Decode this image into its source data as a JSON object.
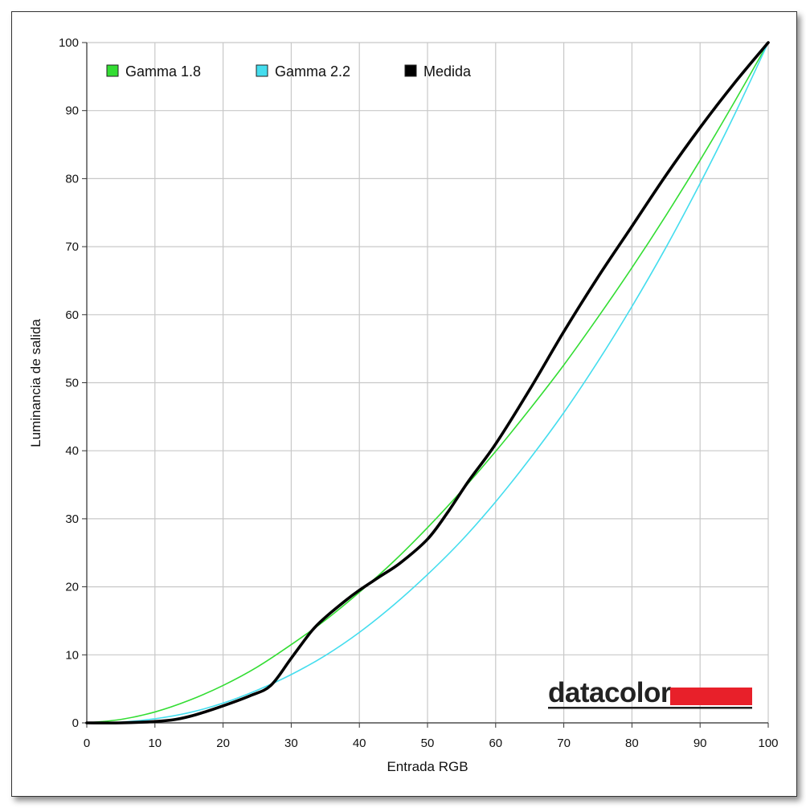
{
  "chart_data": {
    "type": "line",
    "xlabel": "Entrada RGB",
    "ylabel": "Luminancia de salida",
    "xlim": [
      0,
      100
    ],
    "ylim": [
      0,
      100
    ],
    "x_ticks": [
      "0",
      "10",
      "20",
      "30",
      "40",
      "50",
      "60",
      "70",
      "80",
      "90",
      "100"
    ],
    "y_ticks": [
      "0",
      "10",
      "20",
      "30",
      "40",
      "50",
      "60",
      "70",
      "80",
      "90",
      "100"
    ],
    "grid": true,
    "legend_position": "top-left",
    "series": [
      {
        "name": "Gamma 1.8",
        "color": "#33dd33",
        "x": [
          0,
          5,
          10,
          15,
          20,
          25,
          30,
          35,
          40,
          45,
          50,
          55,
          60,
          65,
          70,
          75,
          80,
          85,
          90,
          95,
          100
        ],
        "y": [
          0,
          0.5,
          1.6,
          3.3,
          5.5,
          8.2,
          11.5,
          15.1,
          19.2,
          23.7,
          28.7,
          34.1,
          39.9,
          46.1,
          52.6,
          59.6,
          66.9,
          74.6,
          82.7,
          91.2,
          100
        ]
      },
      {
        "name": "Gamma 2.2",
        "color": "#44ddee",
        "x": [
          0,
          5,
          10,
          15,
          20,
          25,
          30,
          35,
          40,
          45,
          50,
          55,
          60,
          65,
          70,
          75,
          80,
          85,
          90,
          95,
          100
        ],
        "y": [
          0,
          0.1,
          0.6,
          1.5,
          2.9,
          4.8,
          7.1,
          9.9,
          13.3,
          17.3,
          21.8,
          26.8,
          32.5,
          38.8,
          45.6,
          53.1,
          61.2,
          69.9,
          79.3,
          89.3,
          100
        ]
      },
      {
        "name": "Medida",
        "color": "#000000",
        "x": [
          0,
          5,
          10,
          13,
          16,
          20,
          24,
          27,
          30,
          33,
          35,
          38,
          40,
          43,
          46,
          50,
          53,
          56,
          60,
          65,
          70,
          75,
          80,
          85,
          90,
          95,
          100
        ],
        "y": [
          0,
          0,
          0.2,
          0.5,
          1.2,
          2.5,
          4,
          5.5,
          9.5,
          13.5,
          15.5,
          18,
          19.5,
          21.5,
          23.5,
          27,
          31,
          35.5,
          41,
          49,
          57.5,
          65.5,
          73,
          80.5,
          87.5,
          94,
          100
        ]
      }
    ]
  },
  "logo": {
    "text": "datacolor",
    "bar_color": "#e8202a"
  }
}
